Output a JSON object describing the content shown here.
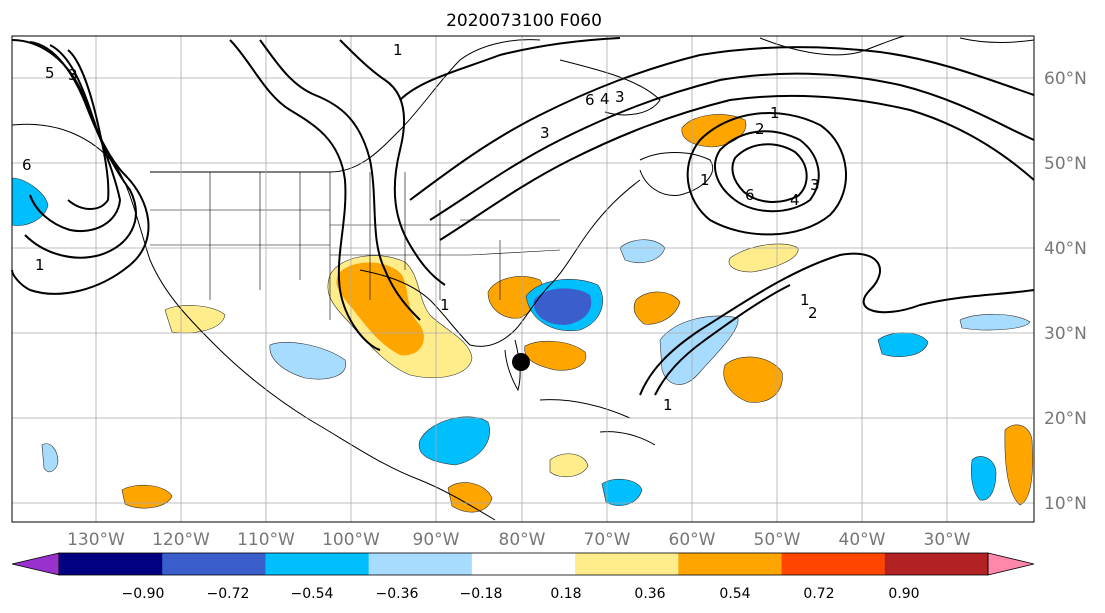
{
  "title": "2020073100 F060",
  "map": {
    "lon_labels": [
      "130°W",
      "120°W",
      "110°W",
      "100°W",
      "90°W",
      "80°W",
      "70°W",
      "60°W",
      "50°W",
      "40°W",
      "30°W"
    ],
    "lat_labels": [
      "60°N",
      "50°N",
      "40°N",
      "30°N",
      "20°N",
      "10°N"
    ],
    "contour_labels": [
      "5",
      "3",
      "6",
      "1",
      "1",
      "3",
      "6",
      "4",
      "3",
      "1",
      "2",
      "3",
      "4",
      "6",
      "1",
      "2",
      "1",
      "1",
      "1"
    ]
  },
  "colorbar": {
    "ticks": [
      "−0.90",
      "−0.72",
      "−0.54",
      "−0.36",
      "−0.18",
      "0.18",
      "0.36",
      "0.54",
      "0.72",
      "0.90"
    ],
    "colors": [
      "#9932cc",
      "#000080",
      "#3a5fcd",
      "#00bfff",
      "#a8dcff",
      "#ffffff",
      "#ffec8b",
      "#ffa500",
      "#ff4500",
      "#b22222",
      "#ff88aa"
    ]
  },
  "marker": {
    "label": "storm-position"
  }
}
